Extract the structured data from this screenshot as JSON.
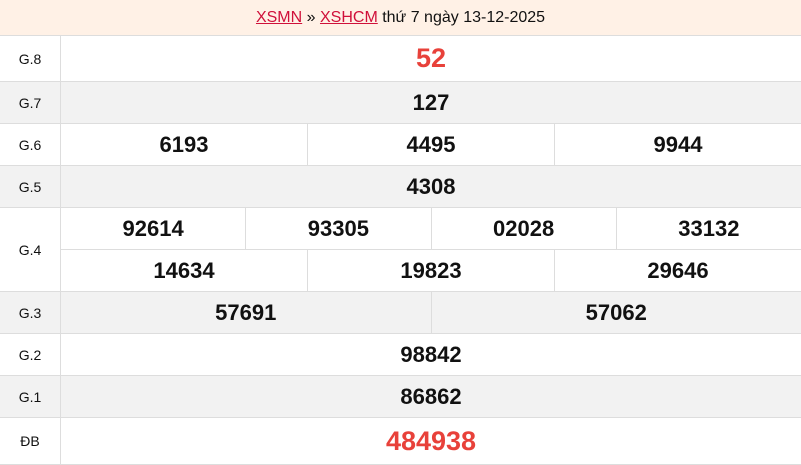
{
  "header": {
    "link1": "XSMN",
    "sep": " » ",
    "link2": "XSHCM",
    "text": " thứ 7 ngày 13-12-2025"
  },
  "colors": {
    "highlight": "#e8413a",
    "link": "#d0103a"
  },
  "rows": [
    {
      "label": "G.8",
      "lines": [
        [
          "52"
        ]
      ],
      "highlight": true
    },
    {
      "label": "G.7",
      "lines": [
        [
          "127"
        ]
      ]
    },
    {
      "label": "G.6",
      "lines": [
        [
          "6193",
          "4495",
          "9944"
        ]
      ]
    },
    {
      "label": "G.5",
      "lines": [
        [
          "4308"
        ]
      ]
    },
    {
      "label": "G.4",
      "lines": [
        [
          "92614",
          "93305",
          "02028",
          "33132"
        ],
        [
          "14634",
          "19823",
          "29646"
        ]
      ]
    },
    {
      "label": "G.3",
      "lines": [
        [
          "57691",
          "57062"
        ]
      ]
    },
    {
      "label": "G.2",
      "lines": [
        [
          "98842"
        ]
      ]
    },
    {
      "label": "G.1",
      "lines": [
        [
          "86862"
        ]
      ]
    },
    {
      "label": "ĐB",
      "lines": [
        [
          "484938"
        ]
      ],
      "highlight": true
    }
  ]
}
